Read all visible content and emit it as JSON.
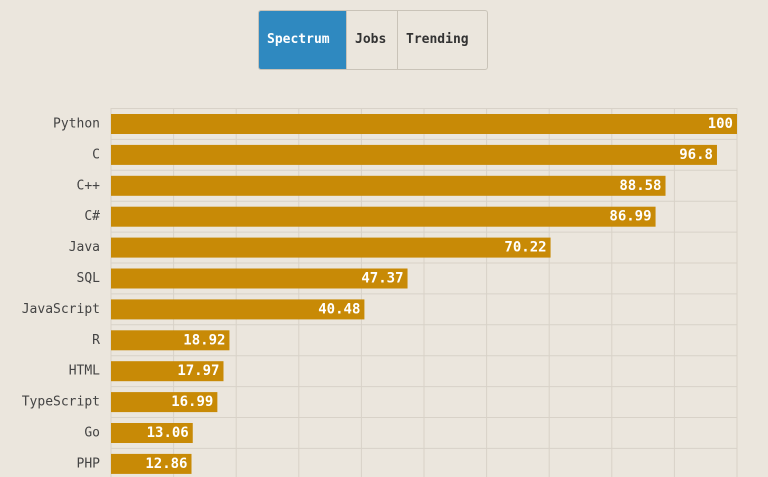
{
  "tabs": [
    {
      "label": "Spectrum",
      "active": true
    },
    {
      "label": "Jobs",
      "active": false
    },
    {
      "label": "Trending",
      "active": false
    }
  ],
  "colors": {
    "bar": "#c88a06",
    "background": "#ebe6dd",
    "grid": "#d8d2c8",
    "active_tab": "#2f89c0",
    "label_text": "#444444",
    "value_text": "#ffffff"
  },
  "chart_data": {
    "type": "bar",
    "orientation": "horizontal",
    "categories": [
      "Python",
      "C",
      "C++",
      "C#",
      "Java",
      "SQL",
      "JavaScript",
      "R",
      "HTML",
      "TypeScript",
      "Go",
      "PHP"
    ],
    "values": [
      100,
      96.8,
      88.58,
      86.99,
      70.22,
      47.37,
      40.48,
      18.92,
      17.97,
      16.99,
      13.06,
      12.86
    ],
    "value_labels": [
      "100",
      "96.8",
      "88.58",
      "86.99",
      "70.22",
      "47.37",
      "40.48",
      "18.92",
      "17.97",
      "16.99",
      "13.06",
      "12.86"
    ],
    "title": "",
    "xlabel": "",
    "ylabel": "",
    "xlim": [
      0,
      100
    ],
    "grid": true
  }
}
